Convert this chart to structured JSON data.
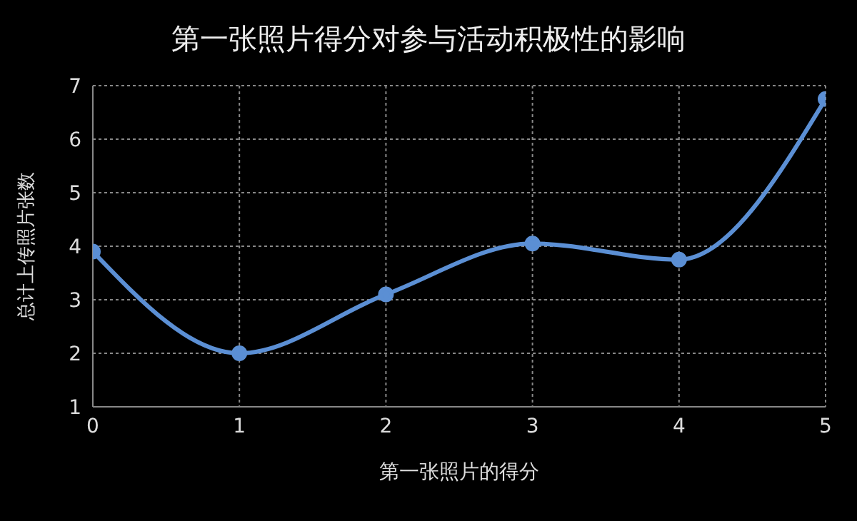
{
  "chart_data": {
    "type": "line",
    "title": "第一张照片得分对参与活动积极性的影响",
    "xlabel": "第一张照片的得分",
    "ylabel": "总计上传照片张数",
    "x": [
      0,
      1,
      2,
      3,
      4,
      5
    ],
    "series": [
      {
        "color": "#5b8fd4",
        "values": [
          3.9,
          2.0,
          3.1,
          4.05,
          3.75,
          6.75
        ]
      }
    ],
    "xlim": [
      0,
      5
    ],
    "xticks": [
      0,
      1,
      2,
      3,
      4,
      5
    ],
    "ylim": [
      1,
      7
    ],
    "yticks": [
      1,
      2,
      3,
      4,
      5,
      6,
      7
    ],
    "grid": true,
    "marker": "circle",
    "line_style": "solid",
    "legend": false
  }
}
